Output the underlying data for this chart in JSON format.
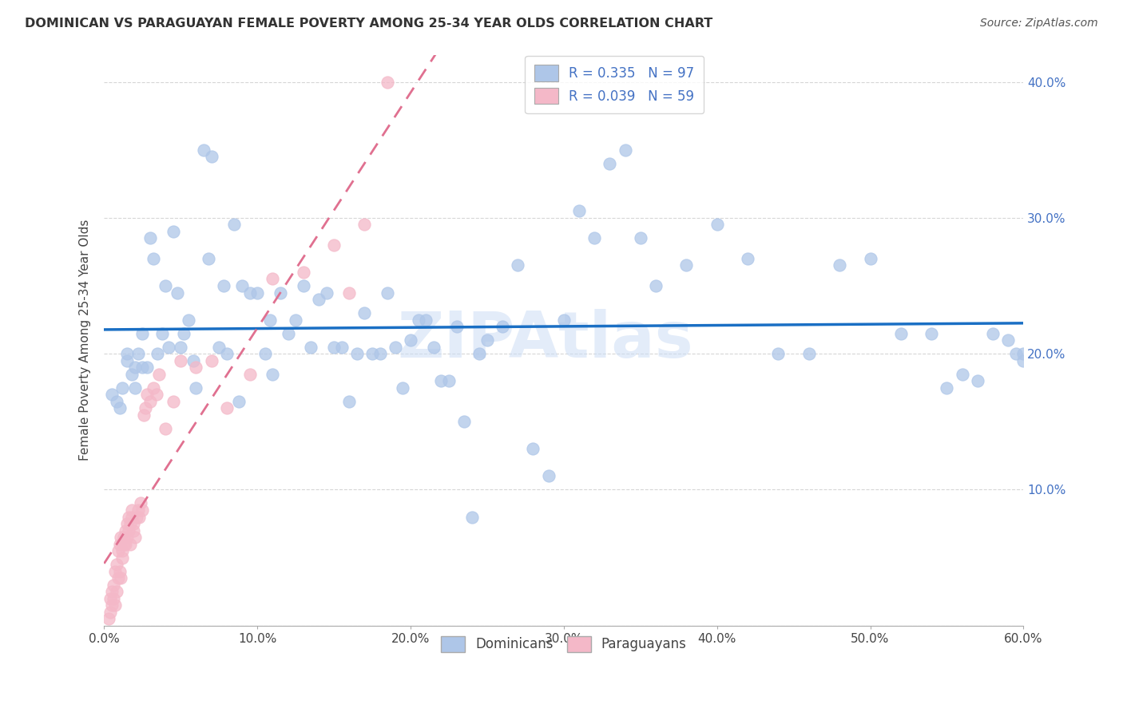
{
  "title": "DOMINICAN VS PARAGUAYAN FEMALE POVERTY AMONG 25-34 YEAR OLDS CORRELATION CHART",
  "source": "Source: ZipAtlas.com",
  "ylabel": "Female Poverty Among 25-34 Year Olds",
  "xlim": [
    0.0,
    0.6
  ],
  "ylim": [
    0.0,
    0.42
  ],
  "xticks": [
    0.0,
    0.1,
    0.2,
    0.3,
    0.4,
    0.5,
    0.6
  ],
  "yticks": [
    0.0,
    0.1,
    0.2,
    0.3,
    0.4
  ],
  "xtick_labels": [
    "0.0%",
    "10.0%",
    "20.0%",
    "30.0%",
    "40.0%",
    "50.0%",
    "60.0%"
  ],
  "ytick_labels_right": [
    "",
    "10.0%",
    "20.0%",
    "30.0%",
    "40.0%"
  ],
  "legend1_label": "R = 0.335   N = 97",
  "legend2_label": "R = 0.039   N = 59",
  "dominican_color": "#aec6e8",
  "paraguayan_color": "#f4b8c8",
  "dominican_line_color": "#1a6fc4",
  "paraguayan_line_color": "#e07090",
  "watermark": "ZIPAtlas",
  "watermark_color": "#ccddf5",
  "background_color": "#ffffff",
  "grid_color": "#cccccc",
  "dom_x": [
    0.005,
    0.008,
    0.01,
    0.012,
    0.015,
    0.015,
    0.018,
    0.02,
    0.02,
    0.022,
    0.025,
    0.025,
    0.028,
    0.03,
    0.032,
    0.035,
    0.038,
    0.04,
    0.042,
    0.045,
    0.048,
    0.05,
    0.052,
    0.055,
    0.058,
    0.06,
    0.065,
    0.068,
    0.07,
    0.075,
    0.078,
    0.08,
    0.085,
    0.088,
    0.09,
    0.095,
    0.1,
    0.105,
    0.108,
    0.11,
    0.115,
    0.12,
    0.125,
    0.13,
    0.135,
    0.14,
    0.145,
    0.15,
    0.155,
    0.16,
    0.165,
    0.17,
    0.175,
    0.18,
    0.185,
    0.19,
    0.195,
    0.2,
    0.205,
    0.21,
    0.215,
    0.22,
    0.225,
    0.23,
    0.235,
    0.24,
    0.245,
    0.25,
    0.26,
    0.27,
    0.28,
    0.29,
    0.3,
    0.31,
    0.32,
    0.33,
    0.34,
    0.35,
    0.36,
    0.38,
    0.4,
    0.42,
    0.44,
    0.46,
    0.48,
    0.5,
    0.52,
    0.54,
    0.55,
    0.56,
    0.57,
    0.58,
    0.59,
    0.595,
    0.6,
    0.6,
    0.605
  ],
  "dom_y": [
    0.17,
    0.165,
    0.16,
    0.175,
    0.195,
    0.2,
    0.185,
    0.19,
    0.175,
    0.2,
    0.19,
    0.215,
    0.19,
    0.285,
    0.27,
    0.2,
    0.215,
    0.25,
    0.205,
    0.29,
    0.245,
    0.205,
    0.215,
    0.225,
    0.195,
    0.175,
    0.35,
    0.27,
    0.345,
    0.205,
    0.25,
    0.2,
    0.295,
    0.165,
    0.25,
    0.245,
    0.245,
    0.2,
    0.225,
    0.185,
    0.245,
    0.215,
    0.225,
    0.25,
    0.205,
    0.24,
    0.245,
    0.205,
    0.205,
    0.165,
    0.2,
    0.23,
    0.2,
    0.2,
    0.245,
    0.205,
    0.175,
    0.21,
    0.225,
    0.225,
    0.205,
    0.18,
    0.18,
    0.22,
    0.15,
    0.08,
    0.2,
    0.21,
    0.22,
    0.265,
    0.13,
    0.11,
    0.225,
    0.305,
    0.285,
    0.34,
    0.35,
    0.285,
    0.25,
    0.265,
    0.295,
    0.27,
    0.2,
    0.2,
    0.265,
    0.27,
    0.215,
    0.215,
    0.175,
    0.185,
    0.18,
    0.215,
    0.21,
    0.2,
    0.195,
    0.2,
    0.205
  ],
  "par_x": [
    0.003,
    0.004,
    0.004,
    0.005,
    0.005,
    0.006,
    0.006,
    0.007,
    0.007,
    0.008,
    0.008,
    0.009,
    0.009,
    0.01,
    0.01,
    0.011,
    0.011,
    0.012,
    0.012,
    0.013,
    0.013,
    0.014,
    0.014,
    0.015,
    0.015,
    0.016,
    0.016,
    0.017,
    0.017,
    0.018,
    0.018,
    0.019,
    0.019,
    0.02,
    0.021,
    0.022,
    0.023,
    0.024,
    0.025,
    0.026,
    0.027,
    0.028,
    0.03,
    0.032,
    0.034,
    0.036,
    0.04,
    0.045,
    0.05,
    0.06,
    0.07,
    0.08,
    0.095,
    0.11,
    0.13,
    0.15,
    0.16,
    0.17,
    0.185
  ],
  "par_y": [
    0.005,
    0.02,
    0.01,
    0.025,
    0.015,
    0.03,
    0.02,
    0.04,
    0.015,
    0.045,
    0.025,
    0.055,
    0.035,
    0.06,
    0.04,
    0.065,
    0.035,
    0.055,
    0.05,
    0.06,
    0.065,
    0.06,
    0.07,
    0.065,
    0.075,
    0.07,
    0.08,
    0.075,
    0.06,
    0.08,
    0.085,
    0.07,
    0.075,
    0.065,
    0.08,
    0.085,
    0.08,
    0.09,
    0.085,
    0.155,
    0.16,
    0.17,
    0.165,
    0.175,
    0.17,
    0.185,
    0.145,
    0.165,
    0.195,
    0.19,
    0.195,
    0.16,
    0.185,
    0.255,
    0.26,
    0.28,
    0.245,
    0.295,
    0.4
  ]
}
